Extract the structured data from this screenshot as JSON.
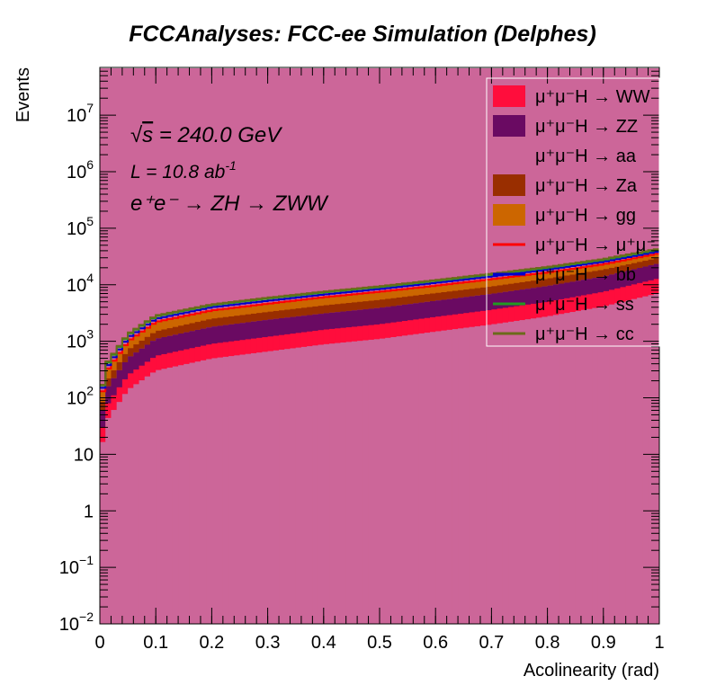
{
  "chart_data": {
    "type": "area",
    "stacked": true,
    "style": "step-histogram",
    "title": "FCCAnalyses: FCC-ee Simulation (Delphes)",
    "xlabel": "Acolinearity (rad)",
    "ylabel": "Events",
    "xlim": [
      0,
      1
    ],
    "ylim": [
      0.01,
      70000000
    ],
    "yscale": "log",
    "grid": false,
    "legend_position": "top-right",
    "x_ticks": [
      "0",
      "0.1",
      "0.2",
      "0.3",
      "0.4",
      "0.5",
      "0.6",
      "0.7",
      "0.8",
      "0.9",
      "1"
    ],
    "y_ticks": [
      {
        "value": 0.01,
        "base": "10",
        "exp": "−2"
      },
      {
        "value": 0.1,
        "base": "10",
        "exp": "−1"
      },
      {
        "value": 1,
        "base": "1",
        "exp": ""
      },
      {
        "value": 10,
        "base": "10",
        "exp": ""
      },
      {
        "value": 100,
        "base": "10",
        "exp": "2"
      },
      {
        "value": 1000,
        "base": "10",
        "exp": "3"
      },
      {
        "value": 10000,
        "base": "10",
        "exp": "4"
      },
      {
        "value": 100000,
        "base": "10",
        "exp": "5"
      },
      {
        "value": 1000000,
        "base": "10",
        "exp": "6"
      },
      {
        "value": 10000000,
        "base": "10",
        "exp": "7"
      }
    ],
    "annotations": {
      "energy_sqrt": "√",
      "energy_s": "s",
      "energy_rest": " = 240.0 GeV",
      "lumi_base": "L = 10.8 ab",
      "lumi_exp": "-1",
      "process": "e⁺e⁻ → ZH → ZWW"
    },
    "x": [
      0.005,
      0.015,
      0.05,
      0.1,
      0.2,
      0.3,
      0.4,
      0.5,
      0.6,
      0.7,
      0.8,
      0.9,
      1.0
    ],
    "series": [
      {
        "name": "μ⁺μ⁻H → WW",
        "color": "#FF0D3C",
        "kind": "fill",
        "values": [
          30,
          80,
          250,
          550,
          900,
          1200,
          1600,
          2000,
          2700,
          3600,
          5000,
          7500,
          13000
        ]
      },
      {
        "name": "μ⁺μ⁻H → ZZ",
        "color": "#6A0A62",
        "kind": "fill",
        "values": [
          60,
          160,
          500,
          1100,
          1800,
          2400,
          3100,
          3900,
          5200,
          6900,
          9500,
          14000,
          24000
        ]
      },
      {
        "name": "μ⁺μ⁻H → aa",
        "color": "#CC6699",
        "kind": "fill",
        "values": [
          60,
          160,
          500,
          1100,
          1800,
          2400,
          3100,
          3900,
          5200,
          6900,
          9500,
          14000,
          24000
        ]
      },
      {
        "name": "μ⁺μ⁻H → Za",
        "color": "#992E00",
        "kind": "fill",
        "values": [
          85,
          220,
          700,
          1500,
          2500,
          3300,
          4300,
          5400,
          7100,
          9300,
          12800,
          18500,
          30000
        ]
      },
      {
        "name": "μ⁺μ⁻H → gg",
        "color": "#CC6600",
        "kind": "fill",
        "values": [
          130,
          330,
          1000,
          2200,
          3500,
          4600,
          6000,
          7500,
          9600,
          12500,
          16500,
          23000,
          36000
        ]
      },
      {
        "name": "μ⁺μ⁻H → μ⁺μ⁻",
        "color": "#FF0000",
        "kind": "line",
        "values": [
          130,
          330,
          1000,
          2200,
          3500,
          4600,
          6000,
          7500,
          9600,
          12500,
          16500,
          23000,
          36000
        ]
      },
      {
        "name": "μ⁺μ⁻H → bb",
        "color": "#0000CC",
        "kind": "line",
        "values": [
          150,
          380,
          1150,
          2500,
          4000,
          5200,
          6700,
          8400,
          10800,
          14000,
          18500,
          25500,
          39000
        ]
      },
      {
        "name": "μ⁺μ⁻H → ss",
        "color": "#229922",
        "kind": "line",
        "values": [
          165,
          420,
          1280,
          2750,
          4350,
          5700,
          7300,
          9100,
          11700,
          15200,
          20000,
          27500,
          42000
        ]
      },
      {
        "name": "μ⁺μ⁻H → cc",
        "color": "#6B6B1A",
        "kind": "line",
        "values": [
          170,
          440,
          1330,
          2850,
          4500,
          5900,
          7550,
          9400,
          12100,
          15700,
          20700,
          28500,
          43500
        ]
      }
    ]
  }
}
